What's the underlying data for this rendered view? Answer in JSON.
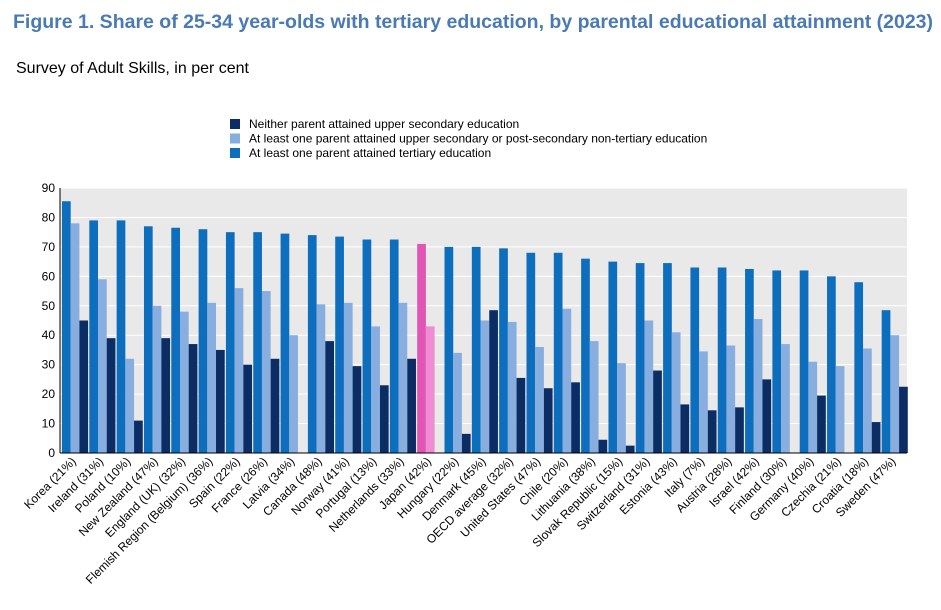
{
  "title": "Figure 1. Share of 25-34 year-olds with tertiary education, by parental educational attainment (2023)",
  "subtitle": "Survey of Adult Skills, in per cent",
  "chart_data": {
    "type": "bar",
    "ylim": [
      0,
      90
    ],
    "yticks": [
      0,
      10,
      20,
      30,
      40,
      50,
      60,
      70,
      80,
      90
    ],
    "grid": true,
    "legend_position": "top",
    "categories": [
      "Korea (21%)",
      "Ireland (31%)",
      "Poland (10%)",
      "New Zealand (47%)",
      "England (UK) (32%)",
      "Flemish Region (Belgium) (36%)",
      "Spain (22%)",
      "France (26%)",
      "Latvia (34%)",
      "Canada (48%)",
      "Norway (41%)",
      "Portugal (13%)",
      "Netherlands (33%)",
      "Japan (42%)",
      "Hungary (22%)",
      "Denmark (45%)",
      "OECD average (32%)",
      "United States (47%)",
      "Chile (20%)",
      "Lithuania (38%)",
      "Slovak Republic (15%)",
      "Switzerland (31%)",
      "Estonia (43%)",
      "Italy (7%)",
      "Austria (28%)",
      "Israel (42%)",
      "Finland (30%)",
      "Germany (40%)",
      "Czechia (21%)",
      "Croatia (18%)",
      "Sweden (47%)"
    ],
    "series": [
      {
        "name": "Neither parent attained upper secondary education",
        "color": "#0c2c64",
        "values": [
          45,
          39,
          11,
          39,
          37,
          35,
          30,
          32,
          null,
          38,
          29.5,
          23,
          32,
          null,
          6.5,
          48.5,
          25.5,
          22,
          24,
          4.5,
          2.5,
          28,
          16.5,
          14.5,
          15.5,
          25,
          null,
          19.5,
          null,
          10.5,
          22.5
        ]
      },
      {
        "name": "At least one parent attained upper secondary or post-secondary non-tertiary education",
        "color": "#88aedf",
        "values": [
          78,
          59,
          32,
          50,
          48,
          51,
          56,
          55,
          40,
          50.5,
          51,
          43,
          51,
          43,
          34,
          45,
          44.5,
          36,
          49,
          38,
          30.5,
          45,
          41,
          34.5,
          36.5,
          45.5,
          37,
          31,
          29.5,
          35.5,
          40
        ]
      },
      {
        "name": "At least one parent attained tertiary education",
        "color": "#0d6ebe",
        "values": [
          85.5,
          79,
          79,
          77,
          76.5,
          76,
          75,
          75,
          74.5,
          74,
          73.5,
          72.5,
          72.5,
          71,
          70,
          70,
          69.5,
          68,
          68,
          66,
          65,
          64.5,
          64.5,
          63,
          63,
          62.5,
          62,
          62,
          60,
          58,
          48.5
        ]
      }
    ],
    "highlight": {
      "category": "Japan (42%)",
      "color_dark": "#e055b5",
      "color_light": "#f08cd2"
    }
  }
}
